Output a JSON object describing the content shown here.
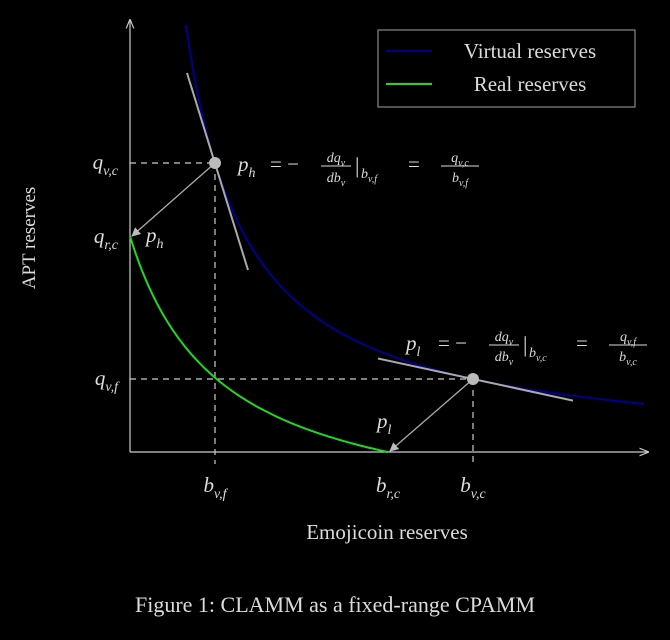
{
  "figure": {
    "caption": "Figure 1: CLAMM as a fixed-range CPAMM",
    "x_axis_label": "Emojicoin reserves",
    "y_axis_label": "APT reserves"
  },
  "legend": [
    {
      "label": "Virtual reserves",
      "color": "#00008b"
    },
    {
      "label": "Real reserves",
      "color": "#1fd81f"
    }
  ],
  "y_ticks": [
    {
      "symbol": "q",
      "subscript": "v,c"
    },
    {
      "symbol": "q",
      "subscript": "r,c"
    },
    {
      "symbol": "q",
      "subscript": "v,f"
    }
  ],
  "x_ticks": [
    {
      "symbol": "b",
      "subscript": "v,f"
    },
    {
      "symbol": "b",
      "subscript": "r,c"
    },
    {
      "symbol": "b",
      "subscript": "v,c"
    }
  ],
  "point_labels": [
    {
      "symbol": "p",
      "subscript": "h"
    },
    {
      "symbol": "p",
      "subscript": "l"
    }
  ],
  "formulas": [
    {
      "lhs": {
        "symbol": "p",
        "subscript": "h"
      },
      "eq1": "= −",
      "derivative": {
        "num": "dq",
        "num_sub": "v",
        "den": "db",
        "den_sub": "v"
      },
      "bar": "|",
      "at": {
        "symbol": "b",
        "subscript": "v,f"
      },
      "eq2": "=",
      "ratio": {
        "num": "q",
        "num_sub": "v,c",
        "den": "b",
        "den_sub": "v,f"
      }
    },
    {
      "lhs": {
        "symbol": "p",
        "subscript": "l"
      },
      "eq1": "= −",
      "derivative": {
        "num": "dq",
        "num_sub": "v",
        "den": "db",
        "den_sub": "v"
      },
      "bar": "|",
      "at": {
        "symbol": "b",
        "subscript": "v,c"
      },
      "eq2": "=",
      "ratio": {
        "num": "q",
        "num_sub": "v,f",
        "den": "b",
        "den_sub": "v,c"
      }
    }
  ]
}
